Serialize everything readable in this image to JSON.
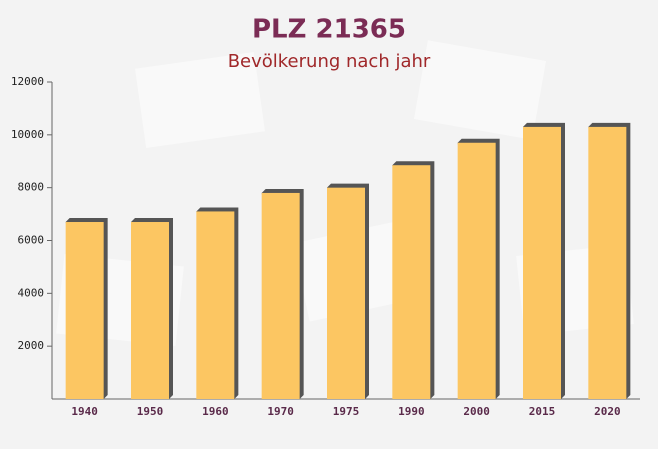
{
  "chart_data": {
    "type": "bar",
    "title": "PLZ 21365",
    "subtitle": "Bevölkerung nach jahr",
    "categories": [
      "1940",
      "1950",
      "1960",
      "1970",
      "1975",
      "1990",
      "2000",
      "2015",
      "2020"
    ],
    "values": [
      6700,
      6700,
      7100,
      7800,
      8000,
      8850,
      9700,
      10300,
      10300
    ],
    "color": "#fcc662",
    "ylim": [
      0,
      12000
    ],
    "yticks": [
      2000,
      4000,
      6000,
      8000,
      10000,
      12000
    ]
  }
}
